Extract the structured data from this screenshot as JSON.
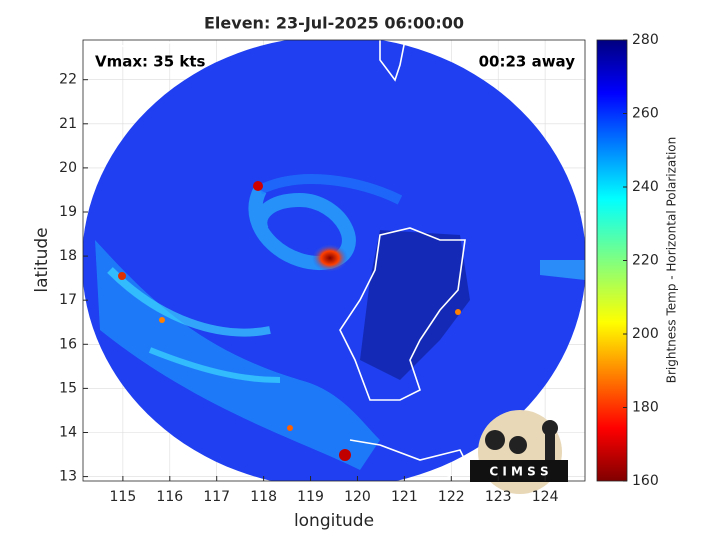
{
  "chart_data": {
    "type": "map",
    "title": "Eleven: 23-Jul-2025 06:00:00",
    "annotations": [
      "Vmax: 35 kts",
      "00:23 away"
    ],
    "xlabel": "longitude",
    "ylabel": "latitude",
    "xlim": [
      114.15,
      124.85
    ],
    "xticks": [
      115,
      116,
      117,
      118,
      119,
      120,
      121,
      122,
      123,
      124
    ],
    "ylim": [
      12.9,
      22.9
    ],
    "yticks": [
      13,
      14,
      15,
      16,
      17,
      18,
      19,
      20,
      21,
      22
    ],
    "grid": true,
    "colorbar": {
      "label": "Brightness Temp - Horizontal Polarization",
      "lim": [
        160,
        280
      ],
      "ticks": [
        160,
        180,
        200,
        220,
        240,
        260,
        280
      ]
    },
    "logo": "C I M S S"
  }
}
